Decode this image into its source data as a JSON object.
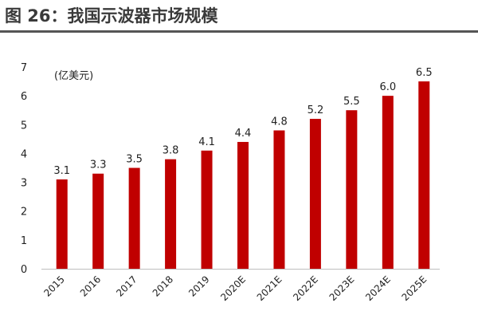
{
  "figure_title": "图 26：我国示波器市场规模",
  "chart_data": {
    "type": "bar",
    "unit_label": "(亿美元)",
    "categories": [
      "2015",
      "2016",
      "2017",
      "2018",
      "2019",
      "2020E",
      "2021E",
      "2022E",
      "2023E",
      "2024E",
      "2025E"
    ],
    "values": [
      3.1,
      3.3,
      3.5,
      3.8,
      4.1,
      4.4,
      4.8,
      5.2,
      5.5,
      6.0,
      6.5
    ],
    "value_labels": [
      "3.1",
      "3.3",
      "3.5",
      "3.8",
      "4.1",
      "4.4",
      "4.8",
      "5.2",
      "5.5",
      "6.0",
      "6.5"
    ],
    "ylim": [
      0,
      7
    ],
    "yticks": [
      0,
      1,
      2,
      3,
      4,
      5,
      6,
      7
    ],
    "grid": false,
    "legend": "none",
    "bar_color": "#c00000",
    "axis_color": "#bfbfbf"
  }
}
